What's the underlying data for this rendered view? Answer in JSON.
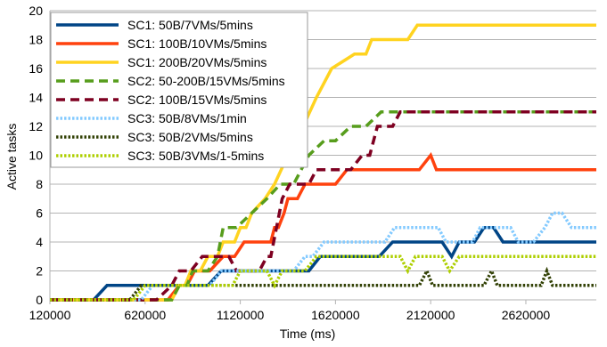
{
  "chart_data": {
    "type": "line",
    "title": "",
    "xlabel": "Time (ms)",
    "ylabel": "Active tasks",
    "xlim": [
      120000,
      2990000
    ],
    "ylim": [
      0,
      20
    ],
    "x_ticks": [
      120000,
      620000,
      1120000,
      1620000,
      2120000,
      2620000
    ],
    "y_ticks": [
      0,
      2,
      4,
      6,
      8,
      10,
      12,
      14,
      16,
      18,
      20
    ],
    "grid": "horizontal",
    "legend_position": "top-left",
    "series": [
      {
        "name": "SC1: 50B/7VMs/5mins",
        "color": "#004586",
        "dash": "solid",
        "points": [
          [
            120000,
            0
          ],
          [
            350000,
            0
          ],
          [
            420000,
            1
          ],
          [
            950000,
            1
          ],
          [
            1020000,
            2
          ],
          [
            1480000,
            2
          ],
          [
            1540000,
            3
          ],
          [
            1850000,
            3
          ],
          [
            1920000,
            4
          ],
          [
            2180000,
            4
          ],
          [
            2230000,
            3
          ],
          [
            2270000,
            4
          ],
          [
            2350000,
            4
          ],
          [
            2400000,
            5
          ],
          [
            2450000,
            5
          ],
          [
            2500000,
            4
          ],
          [
            2990000,
            4
          ]
        ]
      },
      {
        "name": "SC1: 100B/10VMs/5mins",
        "color": "#ff420e",
        "dash": "solid",
        "points": [
          [
            120000,
            0
          ],
          [
            740000,
            0
          ],
          [
            800000,
            1
          ],
          [
            840000,
            1
          ],
          [
            880000,
            2
          ],
          [
            960000,
            2
          ],
          [
            1030000,
            3
          ],
          [
            1090000,
            3
          ],
          [
            1140000,
            4
          ],
          [
            1280000,
            4
          ],
          [
            1300000,
            5
          ],
          [
            1320000,
            5
          ],
          [
            1350000,
            6
          ],
          [
            1370000,
            7
          ],
          [
            1420000,
            7
          ],
          [
            1460000,
            8
          ],
          [
            1620000,
            8
          ],
          [
            1680000,
            9
          ],
          [
            2060000,
            9
          ],
          [
            2120000,
            10
          ],
          [
            2150000,
            9
          ],
          [
            2990000,
            9
          ]
        ]
      },
      {
        "name": "SC1: 200B/20VMs/5mins",
        "color": "#ffd320",
        "dash": "solid",
        "points": [
          [
            120000,
            0
          ],
          [
            760000,
            0
          ],
          [
            800000,
            1
          ],
          [
            830000,
            1
          ],
          [
            860000,
            2
          ],
          [
            910000,
            2
          ],
          [
            950000,
            3
          ],
          [
            1000000,
            3
          ],
          [
            1030000,
            4
          ],
          [
            1090000,
            4
          ],
          [
            1120000,
            5
          ],
          [
            1150000,
            5
          ],
          [
            1180000,
            6
          ],
          [
            1250000,
            7
          ],
          [
            1300000,
            8
          ],
          [
            1370000,
            10
          ],
          [
            1400000,
            12
          ],
          [
            1450000,
            12
          ],
          [
            1520000,
            14
          ],
          [
            1600000,
            16
          ],
          [
            1720000,
            17
          ],
          [
            1780000,
            17
          ],
          [
            1810000,
            18
          ],
          [
            2000000,
            18
          ],
          [
            2050000,
            19
          ],
          [
            2990000,
            19
          ]
        ]
      },
      {
        "name": "SC2: 50-200B/15VMs/5mins",
        "color": "#579d1c",
        "dash": "dashed",
        "points": [
          [
            120000,
            0
          ],
          [
            760000,
            0
          ],
          [
            800000,
            1
          ],
          [
            840000,
            1
          ],
          [
            870000,
            2
          ],
          [
            950000,
            2
          ],
          [
            1000000,
            3
          ],
          [
            1030000,
            5
          ],
          [
            1100000,
            5
          ],
          [
            1180000,
            6
          ],
          [
            1260000,
            7
          ],
          [
            1330000,
            8
          ],
          [
            1400000,
            8
          ],
          [
            1480000,
            10
          ],
          [
            1560000,
            11
          ],
          [
            1620000,
            11
          ],
          [
            1700000,
            12
          ],
          [
            1780000,
            12
          ],
          [
            1860000,
            13
          ],
          [
            2990000,
            13
          ]
        ]
      },
      {
        "name": "SC2: 100B/15VMs/5mins",
        "color": "#7e0021",
        "dash": "dashed",
        "points": [
          [
            120000,
            0
          ],
          [
            680000,
            0
          ],
          [
            760000,
            1
          ],
          [
            800000,
            2
          ],
          [
            860000,
            2
          ],
          [
            920000,
            3
          ],
          [
            1060000,
            3
          ],
          [
            1100000,
            2
          ],
          [
            1220000,
            2
          ],
          [
            1260000,
            3
          ],
          [
            1280000,
            3
          ],
          [
            1340000,
            7
          ],
          [
            1380000,
            8
          ],
          [
            1480000,
            8
          ],
          [
            1520000,
            9
          ],
          [
            1700000,
            9
          ],
          [
            1760000,
            10
          ],
          [
            1800000,
            10
          ],
          [
            1840000,
            12
          ],
          [
            1920000,
            12
          ],
          [
            1960000,
            13
          ],
          [
            2990000,
            13
          ]
        ]
      },
      {
        "name": "SC3: 50B/8VMs/1min",
        "color": "#83caff",
        "dash": "dotted",
        "points": [
          [
            120000,
            0
          ],
          [
            600000,
            0
          ],
          [
            660000,
            1
          ],
          [
            960000,
            1
          ],
          [
            1020000,
            2
          ],
          [
            1080000,
            2
          ],
          [
            1120000,
            2
          ],
          [
            1400000,
            2
          ],
          [
            1460000,
            3
          ],
          [
            1500000,
            3
          ],
          [
            1560000,
            4
          ],
          [
            1880000,
            4
          ],
          [
            1930000,
            5
          ],
          [
            2160000,
            5
          ],
          [
            2200000,
            4
          ],
          [
            2340000,
            4
          ],
          [
            2380000,
            5
          ],
          [
            2540000,
            5
          ],
          [
            2580000,
            4
          ],
          [
            2660000,
            4
          ],
          [
            2720000,
            5
          ],
          [
            2760000,
            6
          ],
          [
            2810000,
            6
          ],
          [
            2860000,
            5
          ],
          [
            2990000,
            5
          ]
        ]
      },
      {
        "name": "SC3: 50B/2VMs/5mins",
        "color": "#314004",
        "dash": "dotted",
        "points": [
          [
            120000,
            0
          ],
          [
            540000,
            0
          ],
          [
            600000,
            1
          ],
          [
            2020000,
            1
          ],
          [
            2060000,
            1
          ],
          [
            2100000,
            2
          ],
          [
            2130000,
            1
          ],
          [
            2360000,
            1
          ],
          [
            2400000,
            1
          ],
          [
            2440000,
            2
          ],
          [
            2470000,
            1
          ],
          [
            2660000,
            1
          ],
          [
            2700000,
            1
          ],
          [
            2730000,
            2
          ],
          [
            2760000,
            1
          ],
          [
            2990000,
            1
          ]
        ]
      },
      {
        "name": "SC3: 50B/3VMs/1-5mins",
        "color": "#aecf00",
        "dash": "dotted",
        "points": [
          [
            120000,
            0
          ],
          [
            560000,
            0
          ],
          [
            620000,
            1
          ],
          [
            1080000,
            1
          ],
          [
            1120000,
            2
          ],
          [
            1200000,
            2
          ],
          [
            1260000,
            2
          ],
          [
            1300000,
            1
          ],
          [
            1340000,
            2
          ],
          [
            1460000,
            2
          ],
          [
            1520000,
            3
          ],
          [
            1960000,
            3
          ],
          [
            2000000,
            2
          ],
          [
            2040000,
            3
          ],
          [
            2180000,
            3
          ],
          [
            2220000,
            2
          ],
          [
            2270000,
            3
          ],
          [
            2990000,
            3
          ]
        ]
      }
    ]
  }
}
